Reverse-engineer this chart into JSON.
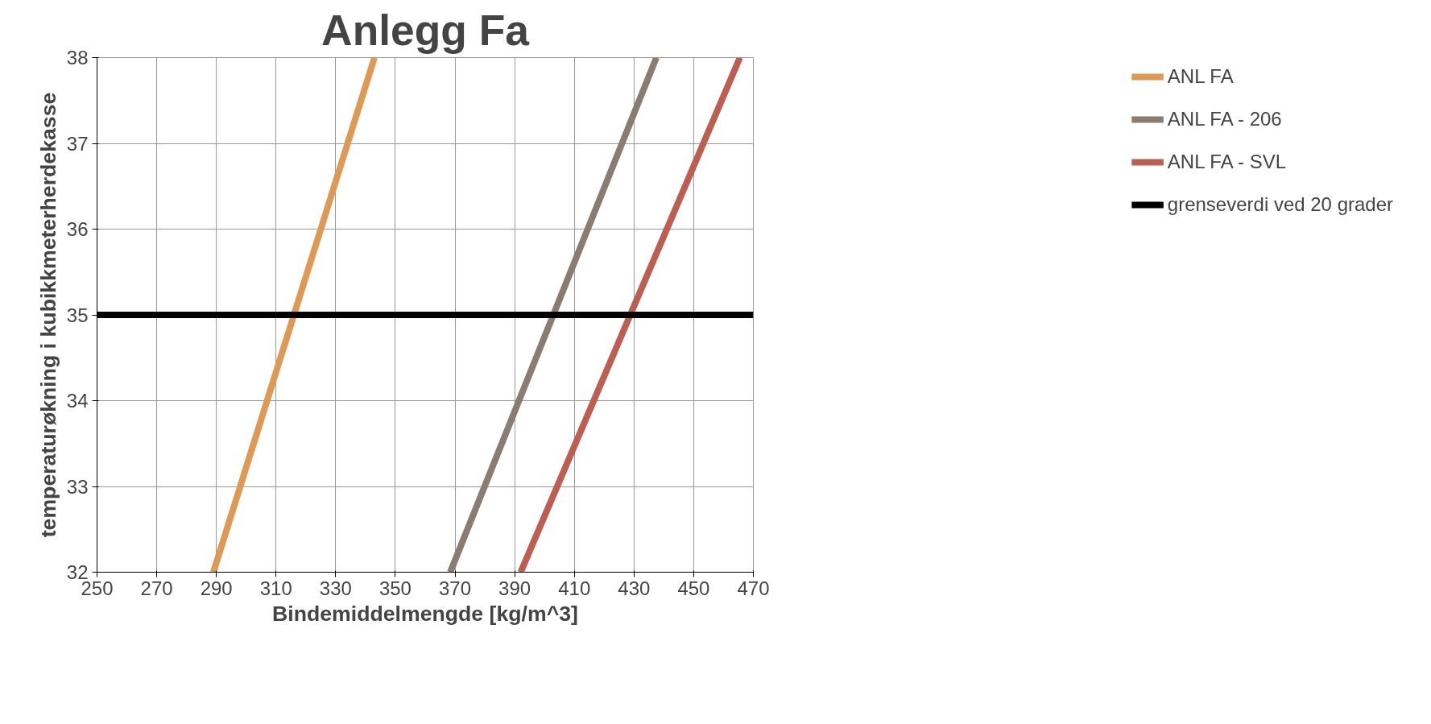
{
  "chart_data": {
    "type": "line",
    "title": "Anlegg Fa",
    "xlabel": "Bindemiddelmengde [kg/m^3]",
    "ylabel": "temperaturøkning i kubikkmeterherdekasse",
    "xlim": [
      250,
      470
    ],
    "xticks": [
      250,
      270,
      290,
      310,
      330,
      350,
      370,
      390,
      410,
      430,
      450,
      470
    ],
    "ylim": [
      32,
      38
    ],
    "yticks": [
      32,
      33,
      34,
      35,
      36,
      37,
      38
    ],
    "grid": true,
    "legend": "right",
    "marker": "none",
    "line_style": "solid",
    "series": [
      {
        "name": "ANL FA",
        "color": "#de9a54",
        "x": [
          289,
          343
        ],
        "values": [
          32,
          38
        ]
      },
      {
        "name": "ANL FA - 206",
        "color": "#8a7c70",
        "x": [
          368.4,
          437.5
        ],
        "values": [
          32,
          38
        ]
      },
      {
        "name": "ANL FA - SVL",
        "color": "#bc5e52",
        "x": [
          392,
          465.5
        ],
        "values": [
          32,
          38
        ]
      },
      {
        "name": "grenseverdi ved 20 grader",
        "color": "#000000",
        "x": [
          250,
          470
        ],
        "values": [
          35,
          35
        ]
      }
    ]
  }
}
